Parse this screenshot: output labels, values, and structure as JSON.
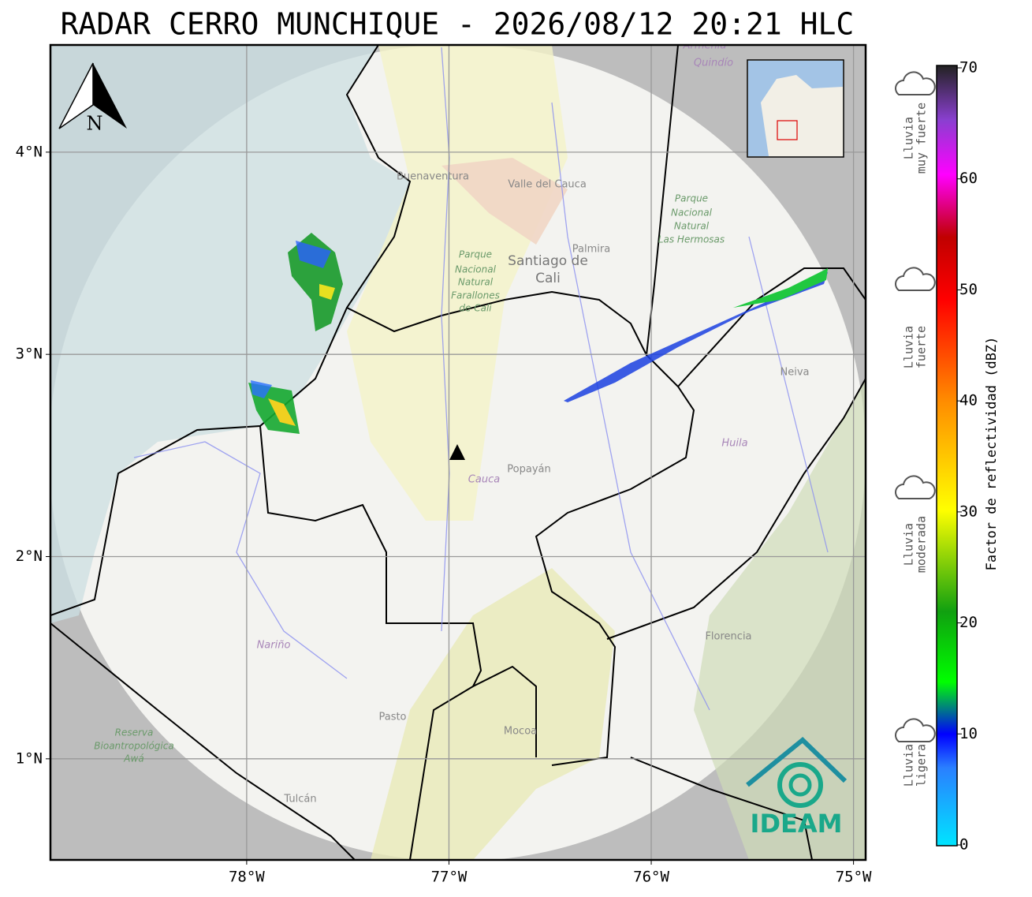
{
  "map": {
    "title": "RADAR CERRO MUNCHIQUE - 2026/08/12 20:21 HLC",
    "north": "N",
    "xlim": [
      -78.97,
      -74.94
    ],
    "ylim": [
      0.5,
      4.53
    ],
    "xticks": [
      {
        "value": -78,
        "label": "78°W"
      },
      {
        "value": -77,
        "label": "77°W"
      },
      {
        "value": -76,
        "label": "76°W"
      },
      {
        "value": -75,
        "label": "75°W"
      }
    ],
    "yticks": [
      {
        "value": 4,
        "label": "4°N"
      },
      {
        "value": 3,
        "label": "3°N"
      },
      {
        "value": 2,
        "label": "2°N"
      },
      {
        "value": 1,
        "label": "1°N"
      }
    ],
    "places": [
      "Buenaventura",
      "Valle del Cauca",
      "Palmira",
      "Santiago de",
      "Cali",
      "Parque",
      "Nacional",
      "Natural",
      "Farallones",
      "de Cali",
      "Parque",
      "Nacional",
      "Natural",
      "Las Hermosas",
      "Neiva",
      "Huila",
      "Popayán",
      "Cauca",
      "Nariño",
      "Florencia",
      "Pasto",
      "Mocoa",
      "Tulcán",
      "Reserva",
      "Bioantropológica",
      "Awá",
      "Armenia",
      "Quindío"
    ],
    "logo": "IDEAM",
    "colorbar": {
      "label": "Factor de reflectividad (dBZ)",
      "lim": [
        0,
        70
      ],
      "ticks": [
        0,
        10,
        20,
        30,
        40,
        50,
        60,
        70
      ]
    },
    "legend": [
      {
        "lines": [
          "Lluvia",
          "muy fuerte"
        ]
      },
      {
        "lines": [
          "Lluvia",
          "fuerte"
        ]
      },
      {
        "lines": [
          "Lluvia",
          "moderada"
        ]
      },
      {
        "lines": [
          "Lluvia",
          "ligera"
        ]
      }
    ]
  }
}
